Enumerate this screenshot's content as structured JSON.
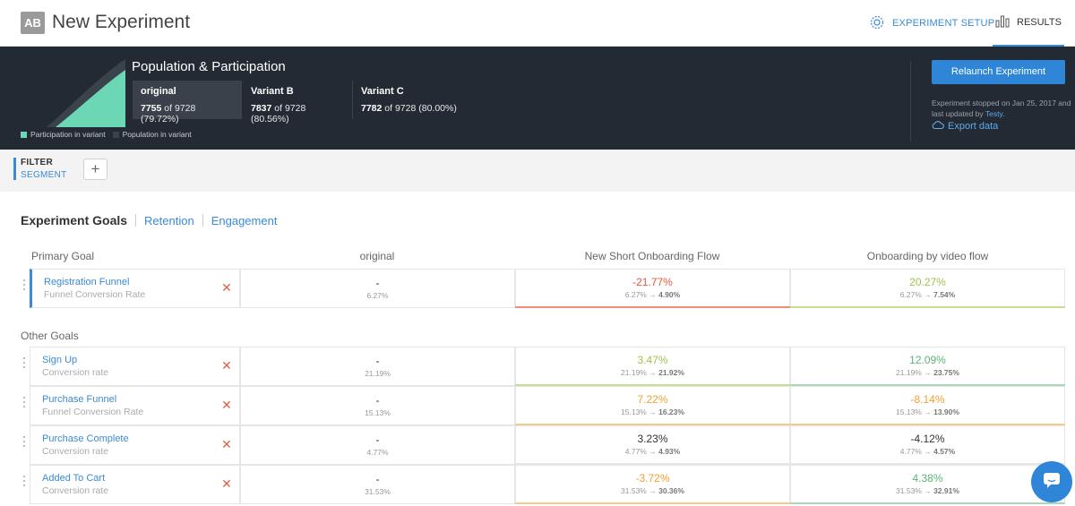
{
  "header": {
    "badge": "AB",
    "title": "New Experiment",
    "nav": {
      "setup": "EXPERIMENT SETUP",
      "results": "RESULTS"
    }
  },
  "population": {
    "title": "Population & Participation",
    "variants": [
      {
        "name": "original",
        "participants": "7755",
        "detail": "of 9728 (79.72%)"
      },
      {
        "name": "Variant B",
        "participants": "7837",
        "detail": "of 9728 (80.56%)"
      },
      {
        "name": "Variant C",
        "participants": "7782",
        "detail": "of 9728 (80.00%)"
      }
    ],
    "legend": {
      "participation": "Participation in variant",
      "population": "Population in variant"
    }
  },
  "status": {
    "relaunch": "Relaunch Experiment",
    "stopped_text": "Experiment stopped on Jan 25, 2017 and last updated by",
    "updated_by": "Testy.",
    "export": "Export data"
  },
  "filter": {
    "label": "FILTER",
    "segment": "SEGMENT",
    "add": "+"
  },
  "tabs": {
    "goals": "Experiment Goals",
    "retention": "Retention",
    "engagement": "Engagement"
  },
  "table": {
    "primary_header": "Primary Goal",
    "other_header": "Other Goals",
    "columns": [
      "original",
      "New Short Onboarding Flow",
      "Onboarding by video flow"
    ]
  },
  "colors": {
    "accent": "#3a8ad6",
    "negative": "#e4573d",
    "positive_green": "#8bbf5a",
    "warn_orange": "#f0a030",
    "dark": "#232a33"
  },
  "goals": [
    {
      "name": "Registration Funnel",
      "metric": "Funnel Conversion Rate",
      "primary": true,
      "orig": "-",
      "orig_rate": "6.27%",
      "v1": {
        "change": "-21.77%",
        "from": "6.27%",
        "to": "4.90%",
        "tone": "negative"
      },
      "v2": {
        "change": "20.27%",
        "from": "6.27%",
        "to": "7.54%",
        "tone": "positive"
      }
    },
    {
      "name": "Sign Up",
      "metric": "Conversion rate",
      "orig": "-",
      "orig_rate": "21.19%",
      "v1": {
        "change": "3.47%",
        "from": "21.19%",
        "to": "21.92%",
        "tone": "positive"
      },
      "v2": {
        "change": "12.09%",
        "from": "21.19%",
        "to": "23.75%",
        "tone": "positive-strong"
      }
    },
    {
      "name": "Purchase Funnel",
      "metric": "Funnel Conversion Rate",
      "orig": "-",
      "orig_rate": "15.13%",
      "v1": {
        "change": "7.22%",
        "from": "15.13%",
        "to": "16.23%",
        "tone": "warn"
      },
      "v2": {
        "change": "-8.14%",
        "from": "15.13%",
        "to": "13.90%",
        "tone": "warn"
      }
    },
    {
      "name": "Purchase Complete",
      "metric": "Conversion rate",
      "orig": "-",
      "orig_rate": "4.77%",
      "v1": {
        "change": "3.23%",
        "from": "4.77%",
        "to": "4.93%",
        "tone": "neutral"
      },
      "v2": {
        "change": "-4.12%",
        "from": "4.77%",
        "to": "4.57%",
        "tone": "neutral"
      }
    },
    {
      "name": "Added To Cart",
      "metric": "Conversion rate",
      "orig": "-",
      "orig_rate": "31.53%",
      "v1": {
        "change": "-3.72%",
        "from": "31.53%",
        "to": "30.36%",
        "tone": "warn"
      },
      "v2": {
        "change": "4.38%",
        "from": "31.53%",
        "to": "32.91%",
        "tone": "positive-strong"
      }
    }
  ]
}
